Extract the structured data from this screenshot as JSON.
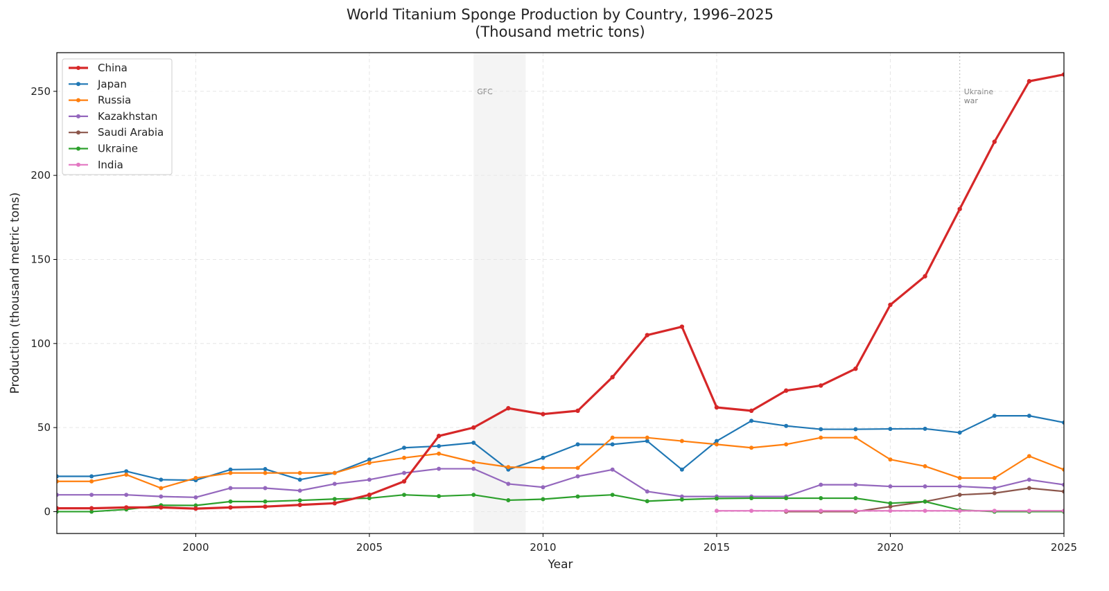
{
  "chart_data": {
    "type": "line",
    "title": "World Titanium Sponge Production by Country, 1996–2025",
    "subtitle": "(Thousand metric tons)",
    "xlabel": "Year",
    "ylabel": "Production (thousand metric tons)",
    "xlim": [
      1996,
      2025
    ],
    "ylim": [
      -13,
      273
    ],
    "xticks": [
      2000,
      2005,
      2010,
      2015,
      2020,
      2025
    ],
    "yticks": [
      0,
      50,
      100,
      150,
      200,
      250
    ],
    "grid": true,
    "legend_position": "top-left",
    "annotations": [
      {
        "type": "span",
        "x_start": 2008,
        "x_end": 2009.5,
        "label": "GFC"
      },
      {
        "type": "vline",
        "x": 2022,
        "label_lines": [
          "Ukraine",
          "war"
        ]
      }
    ],
    "series": [
      {
        "name": "China",
        "color": "#d62728",
        "emphasis": true,
        "x": [
          1996,
          1997,
          1998,
          1999,
          2000,
          2001,
          2002,
          2003,
          2004,
          2005,
          2006,
          2007,
          2008,
          2009,
          2010,
          2011,
          2012,
          2013,
          2014,
          2015,
          2016,
          2017,
          2018,
          2019,
          2020,
          2021,
          2022,
          2023,
          2024,
          2025
        ],
        "values": [
          2,
          2,
          2.5,
          2.5,
          1.8,
          2.5,
          3,
          4,
          5,
          10,
          18,
          45,
          50,
          61.5,
          58,
          60,
          80,
          105,
          110,
          62,
          60,
          72,
          75,
          85,
          123,
          140,
          180,
          220,
          256,
          260
        ]
      },
      {
        "name": "Japan",
        "color": "#1f77b4",
        "x": [
          1996,
          1997,
          1998,
          1999,
          2000,
          2001,
          2002,
          2003,
          2004,
          2005,
          2006,
          2007,
          2008,
          2009,
          2010,
          2011,
          2012,
          2013,
          2014,
          2015,
          2016,
          2017,
          2018,
          2019,
          2020,
          2021,
          2022,
          2023,
          2024,
          2025
        ],
        "values": [
          21,
          21,
          24,
          19,
          18.7,
          25,
          25.3,
          19,
          23,
          31,
          38,
          39,
          41,
          25,
          32,
          40,
          40,
          42,
          25,
          42,
          54,
          51,
          49,
          49,
          49.2,
          49.3,
          47,
          57,
          57,
          53
        ]
      },
      {
        "name": "Russia",
        "color": "#ff7f0e",
        "x": [
          1996,
          1997,
          1998,
          1999,
          2000,
          2001,
          2002,
          2003,
          2004,
          2005,
          2006,
          2007,
          2008,
          2009,
          2010,
          2011,
          2012,
          2013,
          2014,
          2015,
          2016,
          2017,
          2018,
          2019,
          2020,
          2021,
          2022,
          2023,
          2024,
          2025
        ],
        "values": [
          18,
          18,
          22,
          14,
          20,
          23,
          23,
          23,
          23,
          29,
          32,
          34.5,
          29.5,
          26.5,
          26,
          26,
          44,
          44,
          42,
          40,
          38,
          40,
          44,
          44,
          31,
          27,
          20,
          20,
          33,
          25
        ]
      },
      {
        "name": "Kazakhstan",
        "color": "#9467bd",
        "x": [
          1996,
          1997,
          1998,
          1999,
          2000,
          2001,
          2002,
          2003,
          2004,
          2005,
          2006,
          2007,
          2008,
          2009,
          2010,
          2011,
          2012,
          2013,
          2014,
          2015,
          2016,
          2017,
          2018,
          2019,
          2020,
          2021,
          2022,
          2023,
          2024,
          2025
        ],
        "values": [
          10,
          10,
          10,
          9,
          8.5,
          14,
          14,
          12.5,
          16.5,
          19,
          23,
          25.5,
          25.5,
          16.5,
          14.5,
          21,
          25,
          12,
          9,
          9,
          9,
          9,
          16,
          16,
          15,
          15,
          15,
          14,
          19,
          16
        ]
      },
      {
        "name": "Saudi Arabia",
        "color": "#8c564b",
        "x": [
          2017,
          2018,
          2019,
          2020,
          2021,
          2022,
          2023,
          2024,
          2025
        ],
        "values": [
          0,
          0,
          0,
          3,
          6,
          10,
          11,
          14,
          12
        ]
      },
      {
        "name": "Ukraine",
        "color": "#2ca02c",
        "x": [
          1996,
          1997,
          1998,
          1999,
          2000,
          2001,
          2002,
          2003,
          2004,
          2005,
          2006,
          2007,
          2008,
          2009,
          2010,
          2011,
          2012,
          2013,
          2014,
          2015,
          2016,
          2017,
          2018,
          2019,
          2020,
          2021,
          2022,
          2023,
          2024,
          2025
        ],
        "values": [
          0,
          0,
          1.3,
          3.8,
          3.7,
          6,
          6,
          6.7,
          7.5,
          8,
          10,
          9.2,
          10,
          6.8,
          7.4,
          9,
          10,
          6.2,
          7.2,
          7.8,
          8,
          8,
          8,
          8,
          5,
          6,
          1,
          0,
          0,
          0
        ]
      },
      {
        "name": "India",
        "color": "#e377c2",
        "x": [
          2015,
          2016,
          2017,
          2018,
          2019,
          2020,
          2021,
          2022,
          2023,
          2024,
          2025
        ],
        "values": [
          0.5,
          0.5,
          0.5,
          0.5,
          0.5,
          0.5,
          0.5,
          0.5,
          0.5,
          0.5,
          0.5
        ]
      }
    ]
  }
}
